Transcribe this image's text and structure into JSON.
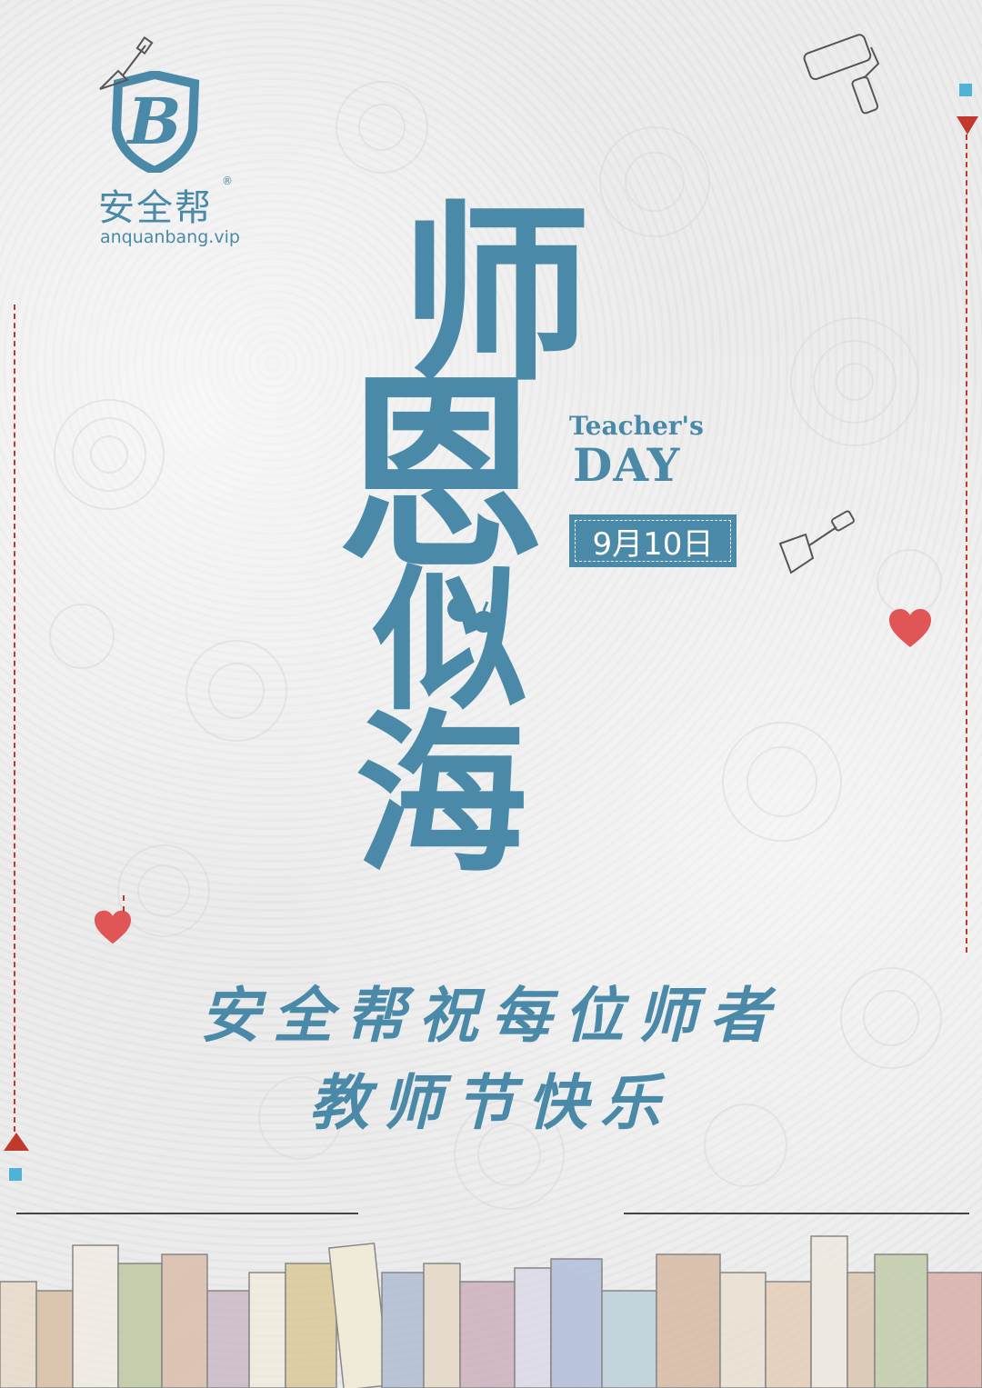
{
  "brand": {
    "logo_letter": "B",
    "name": "安全帮",
    "registered_mark": "®",
    "url": "anquanbang.vip"
  },
  "headline": {
    "char1": "师",
    "char2": "恩",
    "char3": "似",
    "char4": "海"
  },
  "english_title": {
    "line1": "Teacher's",
    "line2": "DAY"
  },
  "date": "9月10日",
  "greeting": {
    "line1": "安全帮祝每位师者",
    "line2": "教师节快乐"
  },
  "colors": {
    "primary_blue": "#4a8aa8",
    "accent_red": "#c0392b",
    "accent_cyan": "#4fb3d9",
    "background": "#eeeeee"
  },
  "icons": [
    "shield-logo-icon",
    "trowel-icon",
    "paint-roller-icon",
    "shovel-icon",
    "heart-icon",
    "apple-icon",
    "book-row-illustration"
  ]
}
